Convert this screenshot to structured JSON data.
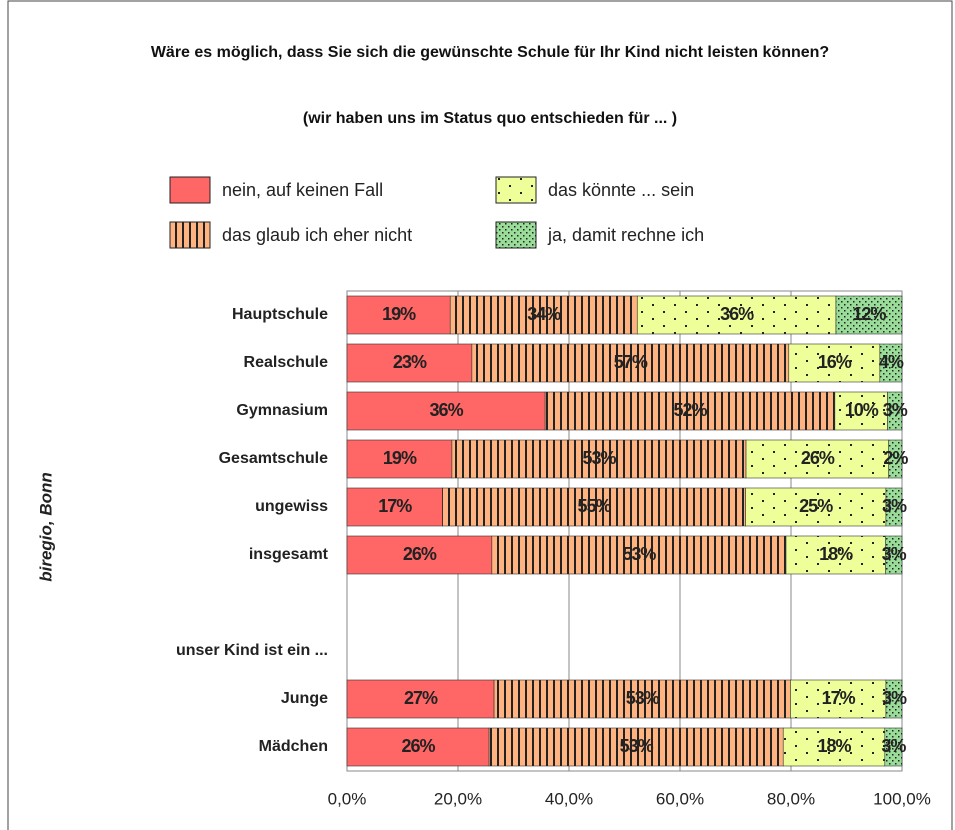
{
  "chart_data": {
    "type": "stacked_bar_horizontal",
    "title": "Wäre es möglich, dass Sie sich die gewünschte Schule für Ihr Kind nicht leisten können?",
    "subtitle": "(wir haben uns im Status quo entschieden für ... )",
    "y_label": "biregio, Bonn",
    "categories": [
      "Hauptschule",
      "Realschule",
      "Gymnasium",
      "Gesamtschule",
      "ungewiss",
      "insgesamt",
      null,
      "unser Kind ist ein ...",
      "Junge",
      "Mädchen"
    ],
    "series": [
      {
        "name": "nein, auf keinen Fall",
        "color": "#ff6666",
        "pattern": "solid",
        "values": [
          18.6,
          22.5,
          35.7,
          18.9,
          17.2,
          26.1,
          null,
          null,
          26.5,
          25.6
        ],
        "value_labels": [
          "19%",
          "23%",
          "36%",
          "19%",
          "17%",
          "26%",
          null,
          null,
          "27%",
          "26%"
        ]
      },
      {
        "name": "das glaub ich eher nicht",
        "color": "#ffb380",
        "pattern": "vertical-hatch",
        "values": [
          33.7,
          57.1,
          52.2,
          53.0,
          54.6,
          53.0,
          null,
          null,
          53.4,
          53.0
        ],
        "value_labels": [
          "34%",
          "57%",
          "52%",
          "53%",
          "55%",
          "53%",
          null,
          null,
          "53%",
          "53%"
        ]
      },
      {
        "name": "das könnte ... sein",
        "color": "#eeff99",
        "pattern": "sparse-dots",
        "values": [
          35.8,
          16.4,
          9.5,
          25.7,
          25.3,
          17.9,
          null,
          null,
          17.2,
          18.3
        ],
        "value_labels": [
          "36%",
          "16%",
          "10%",
          "26%",
          "25%",
          "18%",
          null,
          null,
          "17%",
          "18%"
        ]
      },
      {
        "name": "ja, damit rechne ich",
        "color": "#99dd99",
        "pattern": "dense-dots",
        "values": [
          11.9,
          4.0,
          2.6,
          2.4,
          2.9,
          3.0,
          null,
          null,
          2.9,
          3.1
        ],
        "value_labels": [
          "12%",
          "4%",
          "3%",
          "2%",
          "3%",
          "3%",
          null,
          null,
          "3%",
          "3%"
        ]
      }
    ],
    "xlim": [
      0,
      100
    ],
    "xticks": [
      {
        "value": 0,
        "label": "0,0%"
      },
      {
        "value": 20,
        "label": "20,0%"
      },
      {
        "value": 40,
        "label": "40,0%"
      },
      {
        "value": 60,
        "label": "60,0%"
      },
      {
        "value": 80,
        "label": "80,0%"
      },
      {
        "value": 100,
        "label": "100,0%"
      }
    ],
    "grid": true,
    "legend": "top"
  }
}
